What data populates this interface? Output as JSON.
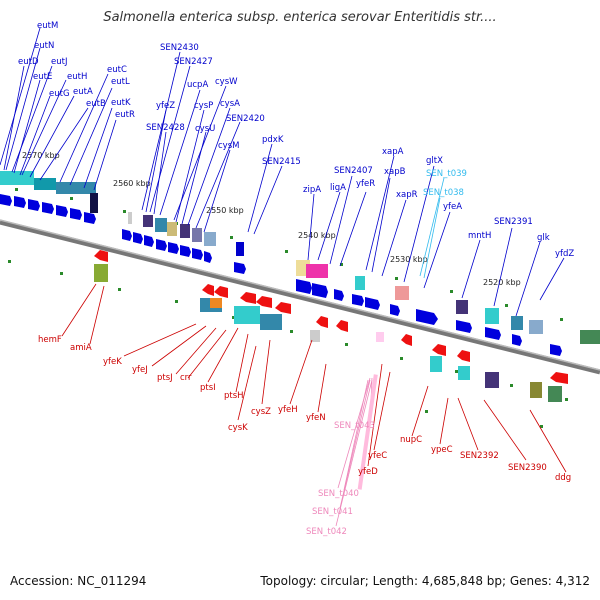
{
  "title": "Salmonella enterica subsp. enterica serovar Enteritidis str....",
  "footer": {
    "accession": "Accession: NC_011294",
    "summary": "Topology: circular; Length: 4,685,848 bp; Genes: 4,312"
  },
  "colors": {
    "forward_label": "#0000cc",
    "reverse_label": "#cc0000",
    "trna_label": "#33bbee",
    "pink_label": "#ee88bb",
    "backbone": "#888888"
  },
  "ruler": [
    "2570 kbp",
    "2560 kbp",
    "2550 kbp",
    "2540 kbp",
    "2530 kbp",
    "2520 kbp"
  ],
  "forward_genes": [
    "eutM",
    "eutN",
    "eutD",
    "eutJ",
    "eutE",
    "eutH",
    "eutG",
    "eutA",
    "eutB",
    "eutC",
    "eutL",
    "eutK",
    "eutR",
    "SEN2430",
    "SEN2427",
    "ucpA",
    "cysW",
    "yfeZ",
    "cysP",
    "cysA",
    "SEN2428",
    "cysU",
    "SEN2420",
    "cysM",
    "pdxK",
    "SEN2415",
    "xapA",
    "SEN2407",
    "ligA",
    "yfeR",
    "xapB",
    "zipA",
    "xapR",
    "gltX",
    "yfeA",
    "mntH",
    "SEN2391",
    "glk",
    "yfdZ"
  ],
  "trna_genes": [
    "SEN_t039",
    "SEN_t038"
  ],
  "reverse_genes": [
    "hemF",
    "amiA",
    "yfeK",
    "yfeJ",
    "ptsJ",
    "crr",
    "ptsI",
    "ptsH",
    "cysZ",
    "yfeH",
    "cysK",
    "yfeN",
    "yfeC",
    "yfeD",
    "nupC",
    "ypeC",
    "SEN2392",
    "SEN2390",
    "ddg"
  ],
  "pink_genes": [
    "SEN_t043",
    "SEN_t040",
    "SEN_t041",
    "SEN_t042"
  ]
}
